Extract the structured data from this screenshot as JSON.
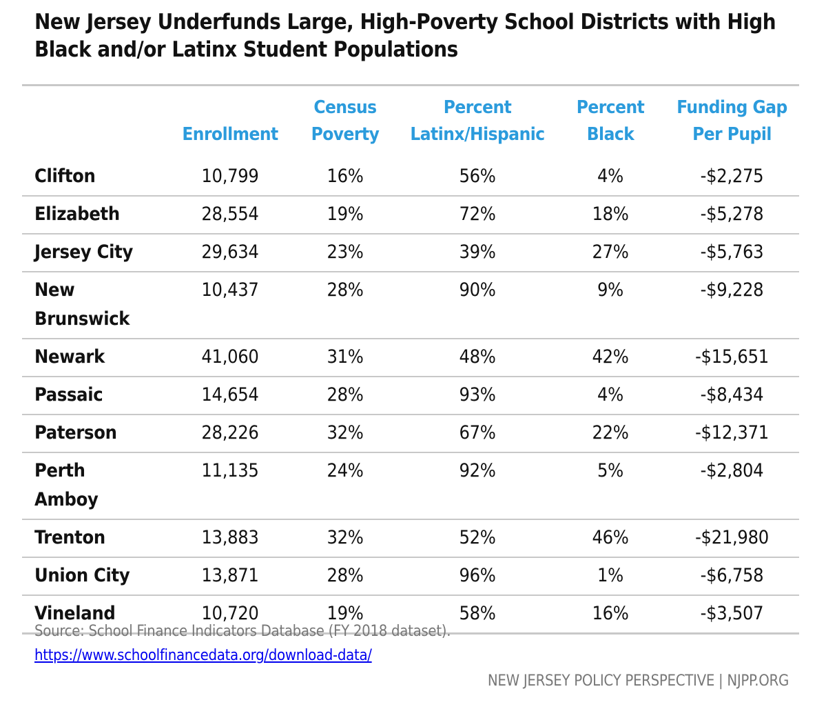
{
  "title": "New Jersey Underfunds Large, High-Poverty School Districts with High Black and/or Latinx Student Populations",
  "chart_data": {
    "type": "table",
    "title": "New Jersey Underfunds Large, High-Poverty School Districts with High Black and/or Latinx Student Populations",
    "columns": [
      "",
      "Enrollment",
      "Census Poverty",
      "Percent Latinx/Hispanic",
      "Percent Black",
      "Funding Gap Per Pupil"
    ],
    "header_lines": [
      [
        "",
        ""
      ],
      [
        "",
        "Enrollment"
      ],
      [
        "Census",
        "Poverty"
      ],
      [
        "Percent",
        "Latinx/Hispanic"
      ],
      [
        "Percent",
        "Black"
      ],
      [
        "Funding Gap",
        "Per Pupil"
      ]
    ],
    "rows": [
      [
        "Clifton",
        "10,799",
        "16%",
        "56%",
        "4%",
        "-$2,275"
      ],
      [
        "Elizabeth",
        "28,554",
        "19%",
        "72%",
        "18%",
        "-$5,278"
      ],
      [
        "Jersey City",
        "29,634",
        "23%",
        "39%",
        "27%",
        "-$5,763"
      ],
      [
        "New Brunswick",
        "10,437",
        "28%",
        "90%",
        "9%",
        "-$9,228"
      ],
      [
        "Newark",
        "41,060",
        "31%",
        "48%",
        "42%",
        "-$15,651"
      ],
      [
        "Passaic",
        "14,654",
        "28%",
        "93%",
        "4%",
        "-$8,434"
      ],
      [
        "Paterson",
        "28,226",
        "32%",
        "67%",
        "22%",
        "-$12,371"
      ],
      [
        "Perth Amboy",
        "11,135",
        "24%",
        "92%",
        "5%",
        "-$2,804"
      ],
      [
        "Trenton",
        "13,883",
        "32%",
        "52%",
        "46%",
        "-$21,980"
      ],
      [
        "Union City",
        "13,871",
        "28%",
        "96%",
        "1%",
        "-$6,758"
      ],
      [
        "Vineland",
        "10,720",
        "19%",
        "58%",
        "16%",
        "-$3,507"
      ]
    ],
    "header_color": "#2b9bdc"
  },
  "footer": {
    "source": "Source:  School Finance Indicators Database (FY 2018 dataset).",
    "link": "https://www.schoolfinancedata.org/download-data/",
    "brand": "NEW JERSEY POLICY PERSPECTIVE | NJPP.ORG"
  }
}
